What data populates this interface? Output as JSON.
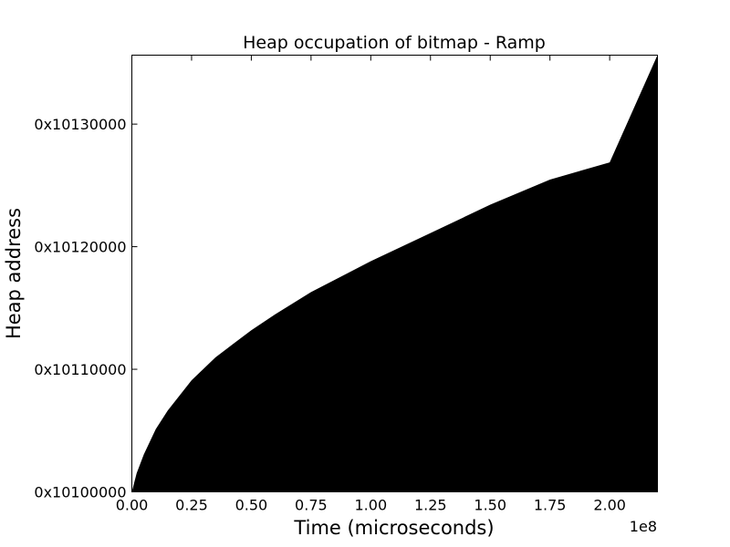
{
  "chart_data": {
    "type": "area",
    "title": "Heap occupation of bitmap - Ramp",
    "xlabel": "Time (microseconds)",
    "ylabel": "Heap address",
    "x_offset_label": "1e8",
    "xlim": [
      0,
      2.2
    ],
    "ylim_hex": [
      "0x10100000",
      "0x10139000"
    ],
    "x_ticks": [
      {
        "value": 0.0,
        "label": "0.00"
      },
      {
        "value": 0.25,
        "label": "0.25"
      },
      {
        "value": 0.5,
        "label": "0.50"
      },
      {
        "value": 0.75,
        "label": "0.75"
      },
      {
        "value": 1.0,
        "label": "1.00"
      },
      {
        "value": 1.25,
        "label": "1.25"
      },
      {
        "value": 1.5,
        "label": "1.50"
      },
      {
        "value": 1.75,
        "label": "1.75"
      },
      {
        "value": 2.0,
        "label": "2.00"
      }
    ],
    "y_ticks": [
      {
        "value": "0x10100000",
        "label": "0x10100000"
      },
      {
        "value": "0x10110000",
        "label": "0x10110000"
      },
      {
        "value": "0x10120000",
        "label": "0x10120000"
      },
      {
        "value": "0x10130000",
        "label": "0x10130000"
      }
    ],
    "series": [
      {
        "x": [
          0.0,
          0.02,
          0.05,
          0.1,
          0.15,
          0.25,
          0.35,
          0.5,
          0.6,
          0.75,
          1.0,
          1.25,
          1.5,
          1.75,
          2.0,
          2.2
        ],
        "y_hex": [
          "0x10100000",
          "0x101026C0",
          "0x10104E00",
          "0x101082D0",
          "0x1010A9A0",
          "0x1010E8F0",
          "0x101118F0",
          "0x10115190",
          "0x101172D0",
          "0x1011A120",
          "0x1011E1D0",
          "0x10121C80",
          "0x101257B0",
          "0x10128C30",
          "0x1012B000",
          "0x10139000"
        ],
        "fill_color": "#000000"
      }
    ],
    "grid": false,
    "legend": "none"
  }
}
